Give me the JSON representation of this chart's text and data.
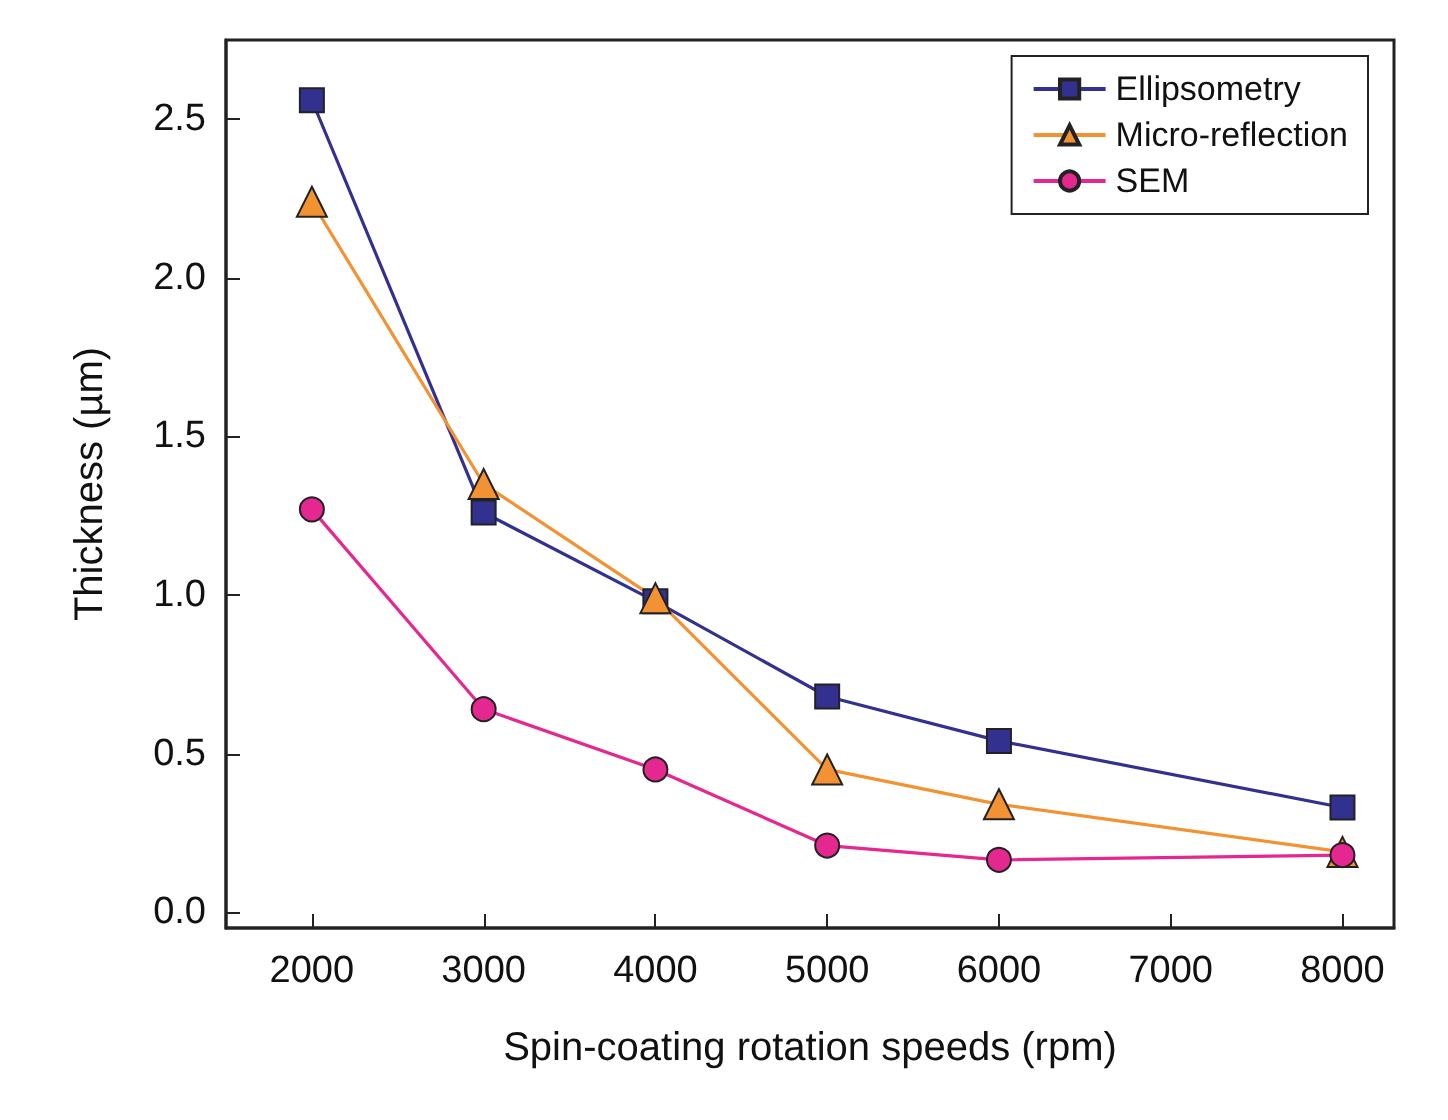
{
  "chart_data": {
    "type": "line",
    "xlabel": "Spin-coating rotation speeds (rpm)",
    "ylabel": "Thickness (µm)",
    "x": [
      2000,
      3000,
      4000,
      5000,
      6000,
      8000
    ],
    "xlim": [
      1500,
      8300
    ],
    "xticks": [
      2000,
      3000,
      4000,
      5000,
      6000,
      7000,
      8000
    ],
    "ylim": [
      -0.05,
      2.75
    ],
    "yticks": [
      {
        "value": 0,
        "label": "0.0"
      },
      {
        "value": 0.5,
        "label": "0.5"
      },
      {
        "value": 1,
        "label": "1.0"
      },
      {
        "value": 1.5,
        "label": "1.5"
      },
      {
        "value": 2,
        "label": "2.0"
      },
      {
        "value": 2.5,
        "label": "2.5"
      }
    ],
    "grid": false,
    "legend": "top right",
    "line_style": "solid",
    "series": [
      {
        "name": "Ellipsometry",
        "color": "#33318f",
        "marker": "square",
        "values": [
          2.56,
          1.26,
          0.98,
          0.68,
          0.54,
          0.33
        ]
      },
      {
        "name": "Micro-reflection",
        "color": "#f39233",
        "marker": "triangle",
        "values": [
          2.24,
          1.35,
          0.99,
          0.45,
          0.34,
          0.19
        ]
      },
      {
        "name": "SEM",
        "color": "#e5288f",
        "marker": "circle",
        "values": [
          1.27,
          0.64,
          0.45,
          0.21,
          0.165,
          0.18
        ]
      }
    ]
  }
}
